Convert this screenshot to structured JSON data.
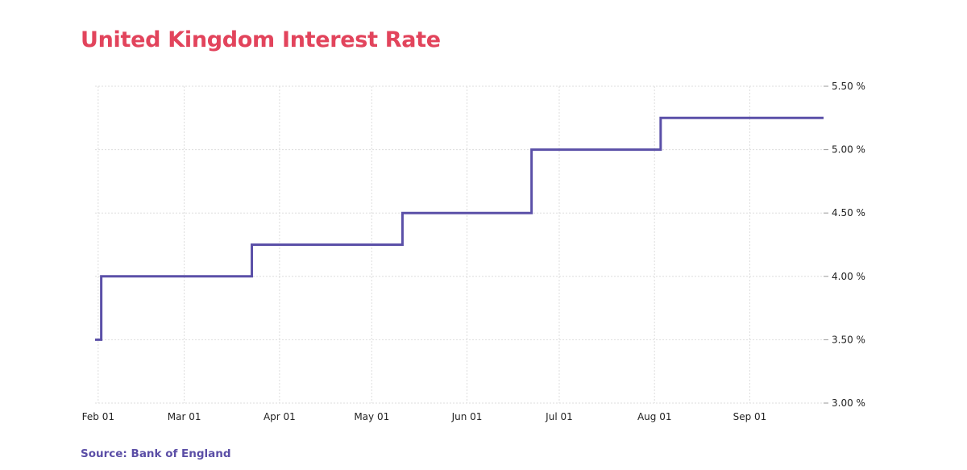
{
  "title": "United Kingdom Interest Rate",
  "source": "Source: Bank of England",
  "colors": {
    "title": "#e2445c",
    "source": "#5b4ea6",
    "line": "#5b50a8",
    "grid": "#dddddd"
  },
  "chart_data": {
    "type": "line",
    "title": "United Kingdom Interest Rate",
    "xlabel": "",
    "ylabel": "",
    "step": true,
    "grid": true,
    "y_axis_side": "right",
    "x_tick_labels": [
      "Feb 01",
      "Mar 01",
      "Apr 01",
      "May 01",
      "Jun 01",
      "Jul 01",
      "Aug 01",
      "Sep 01"
    ],
    "y_tick_labels": [
      "3.00 %",
      "3.50 %",
      "4.00 %",
      "4.50 %",
      "5.00 %",
      "5.50 %"
    ],
    "xlim": [
      "2023-01-31",
      "2023-09-25"
    ],
    "ylim": [
      3.0,
      5.5
    ],
    "series": [
      {
        "points": [
          {
            "x": "2023-01-31",
            "y": 3.5
          },
          {
            "x": "2023-02-02",
            "y": 4.0
          },
          {
            "x": "2023-03-23",
            "y": 4.25
          },
          {
            "x": "2023-05-11",
            "y": 4.5
          },
          {
            "x": "2023-06-22",
            "y": 5.0
          },
          {
            "x": "2023-08-03",
            "y": 5.25
          },
          {
            "x": "2023-09-25",
            "y": 5.25
          }
        ]
      }
    ]
  }
}
